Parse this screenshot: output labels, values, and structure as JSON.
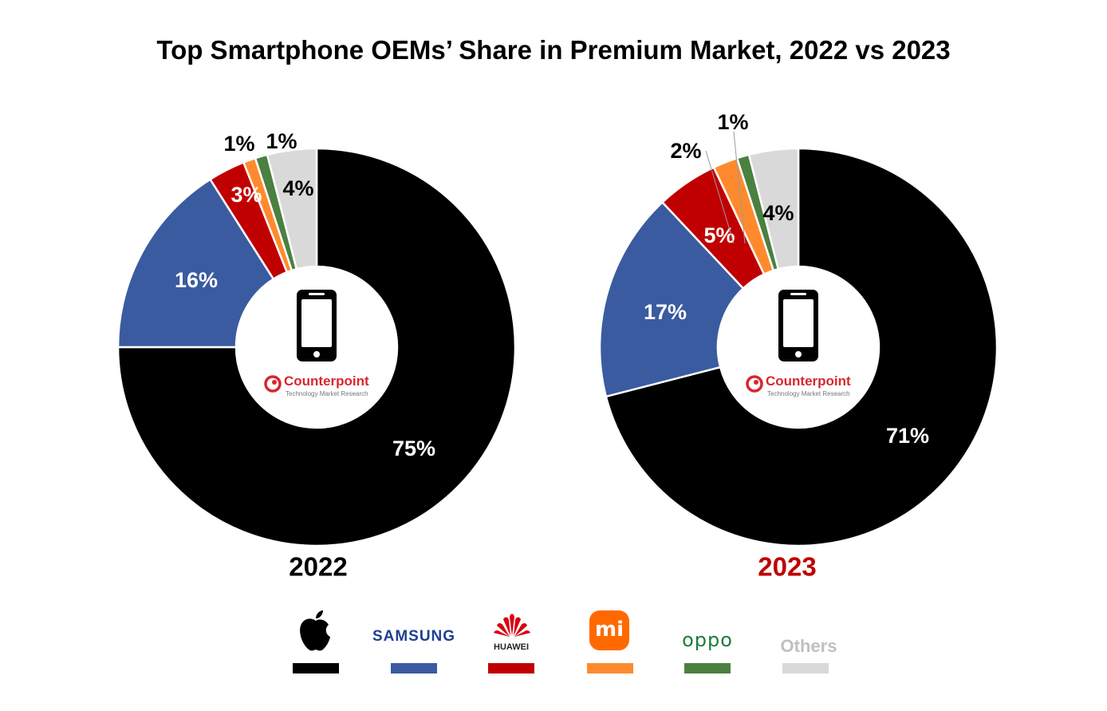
{
  "chart_data": [
    {
      "type": "pie",
      "title": "Top Smartphone OEMs’ Share in Premium Market, 2022 vs 2023",
      "subtitle_year": "2022",
      "series": [
        {
          "name": "Apple",
          "value": 75,
          "label": "75%"
        },
        {
          "name": "Samsung",
          "value": 16,
          "label": "16%"
        },
        {
          "name": "Huawei",
          "value": 3,
          "label": "3%"
        },
        {
          "name": "Xiaomi",
          "value": 1,
          "label": "1%"
        },
        {
          "name": "OPPO",
          "value": 1,
          "label": "1%"
        },
        {
          "name": "Others",
          "value": 4,
          "label": "4%"
        }
      ]
    },
    {
      "type": "pie",
      "subtitle_year": "2023",
      "series": [
        {
          "name": "Apple",
          "value": 71,
          "label": "71%"
        },
        {
          "name": "Samsung",
          "value": 17,
          "label": "17%"
        },
        {
          "name": "Huawei",
          "value": 5,
          "label": "5%"
        },
        {
          "name": "Xiaomi",
          "value": 2,
          "label": "2%"
        },
        {
          "name": "OPPO",
          "value": 1,
          "label": "1%"
        },
        {
          "name": "Others",
          "value": 4,
          "label": "4%"
        }
      ]
    }
  ],
  "page": {
    "title": "Top Smartphone OEMs’ Share in Premium Market, 2022 vs 2023",
    "year_2022": "2022",
    "year_2023": "2023",
    "brand_name": "Counterpoint",
    "brand_tagline": "Technology Market Research"
  },
  "legend": [
    {
      "name": "Apple",
      "logo_text": "",
      "color": "#000000"
    },
    {
      "name": "Samsung",
      "logo_text": "SAMSUNG",
      "color": "#3A5BA0"
    },
    {
      "name": "Huawei",
      "logo_text": "HUAWEI",
      "color": "#C00000"
    },
    {
      "name": "Xiaomi",
      "logo_text": "mi",
      "color": "#FF8A2E"
    },
    {
      "name": "OPPO",
      "logo_text": "oppo",
      "color": "#4A8040"
    },
    {
      "name": "Others",
      "logo_text": "Others",
      "color": "#D9D9D9"
    }
  ],
  "colors": {
    "apple": "#000000",
    "samsung": "#3A5BA0",
    "huawei": "#C00000",
    "xiaomi": "#FF8A2E",
    "oppo": "#4A8040",
    "others": "#D9D9D9",
    "year_2023": "#C00000",
    "brand": "#D9262E"
  }
}
